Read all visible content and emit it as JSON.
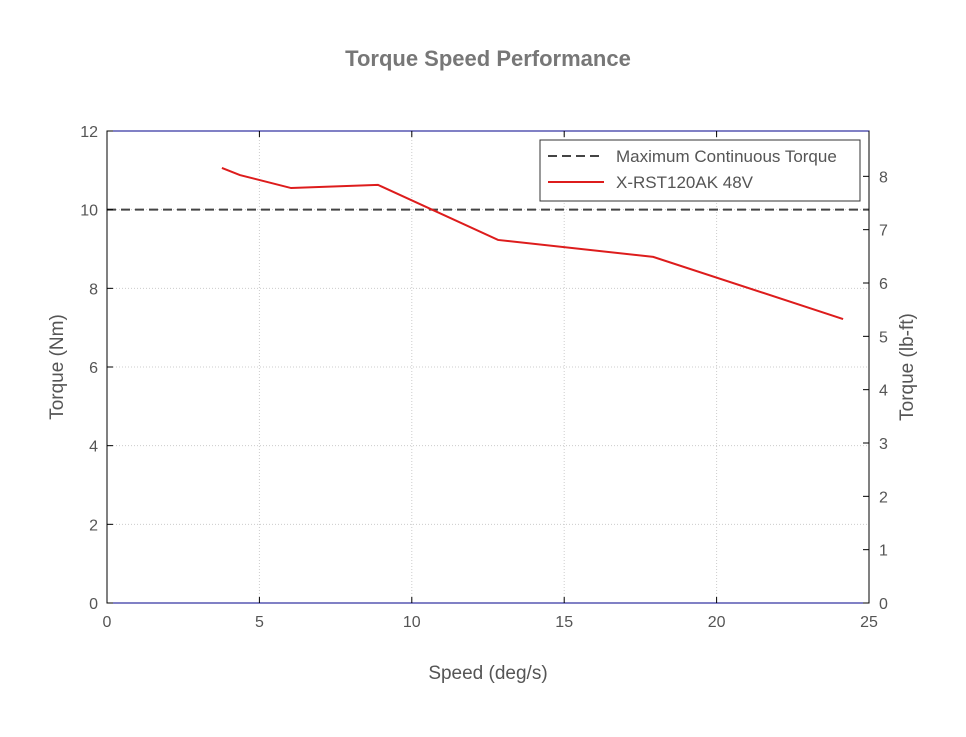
{
  "chart_data": {
    "type": "line",
    "title": "Torque Speed Performance",
    "xlabel": "Speed (deg/s)",
    "ylabel": "Torque (Nm)",
    "y2label": "Torque (lb-ft)",
    "xlim": [
      0,
      25
    ],
    "ylim": [
      0,
      12
    ],
    "y2lim": [
      0,
      8.85
    ],
    "xticks": [
      0,
      5,
      10,
      15,
      20,
      25
    ],
    "yticks": [
      0,
      2,
      4,
      6,
      8,
      10,
      12
    ],
    "y2ticks": [
      0,
      1,
      2,
      3,
      4,
      5,
      6,
      7,
      8
    ],
    "grid": true,
    "legend_position": "top-right",
    "series": [
      {
        "name": "Maximum Continuous Torque",
        "style": "dashed",
        "color": "#444444",
        "x": [
          0,
          25
        ],
        "y": [
          10,
          10
        ]
      },
      {
        "name": "X-RST120AK 48V",
        "style": "solid",
        "color": "#dd1c1c",
        "x": [
          3.77,
          4.36,
          6.04,
          8.89,
          12.83,
          17.92,
          24.15
        ],
        "y": [
          11.06,
          10.88,
          10.55,
          10.63,
          9.23,
          8.8,
          7.22
        ]
      }
    ]
  }
}
